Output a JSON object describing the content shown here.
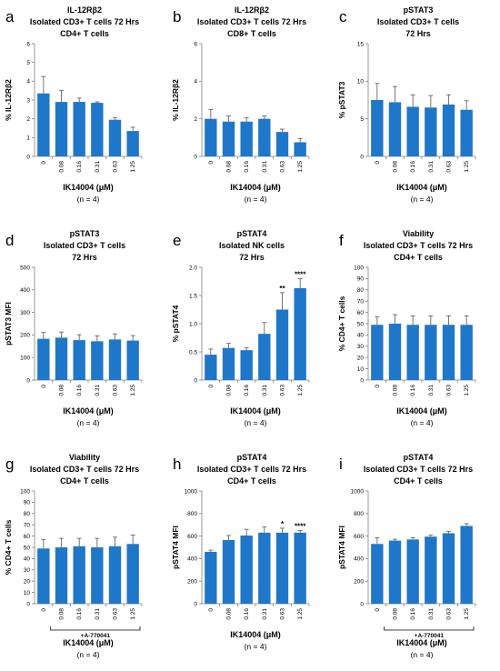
{
  "colors": {
    "bar": "#1f77c9",
    "axis": "#7f7f7f",
    "text": "#000000"
  },
  "chart_data": [
    {
      "type": "bar",
      "letter": "a",
      "title": [
        "IL-12Rβ2",
        "Isolated CD3+ T cells 72 Hrs",
        "CD4+ T cells"
      ],
      "ylabel": "% IL-12Rβ2",
      "xlabel": "IK14004 (μM)",
      "n_label": "(n = 4)",
      "categories": [
        "0",
        "0.08",
        "0.16",
        "0.31",
        "0.63",
        "1.25"
      ],
      "ylim": [
        0,
        6
      ],
      "yticks": [
        0,
        1,
        2,
        3,
        4,
        5,
        6
      ],
      "values": [
        3.35,
        2.9,
        2.9,
        2.85,
        1.95,
        1.35
      ],
      "errors": [
        0.9,
        0.6,
        0.2,
        0.05,
        0.1,
        0.2
      ],
      "significance": [
        "",
        "",
        "",
        "",
        "",
        ""
      ]
    },
    {
      "type": "bar",
      "letter": "b",
      "title": [
        "IL-12Rβ2",
        "Isolated CD3+ T cells 72 Hrs",
        "CD8+ T cells"
      ],
      "ylabel": "% IL-12Rβ2",
      "xlabel": "IK14004 (μM)",
      "n_label": "(n = 4)",
      "categories": [
        "0",
        "0.08",
        "0.16",
        "0.31",
        "0.63",
        "1.25"
      ],
      "ylim": [
        0,
        6
      ],
      "yticks": [
        0,
        2,
        4,
        6
      ],
      "values": [
        2.0,
        1.85,
        1.85,
        2.0,
        1.3,
        0.75
      ],
      "errors": [
        0.5,
        0.3,
        0.2,
        0.15,
        0.15,
        0.2
      ],
      "significance": [
        "",
        "",
        "",
        "",
        "",
        ""
      ]
    },
    {
      "type": "bar",
      "letter": "c",
      "title": [
        "pSTAT3",
        "Isolated CD3+ T cells",
        "72 Hrs"
      ],
      "ylabel": "% pSTAT3",
      "xlabel": "IK14004 (μM)",
      "n_label": "(n = 4)",
      "categories": [
        "0",
        "0.08",
        "0.16",
        "0.31",
        "0.63",
        "1.25"
      ],
      "ylim": [
        0,
        15
      ],
      "yticks": [
        0,
        5,
        10,
        15
      ],
      "values": [
        7.5,
        7.2,
        6.6,
        6.5,
        6.9,
        6.2
      ],
      "errors": [
        2.2,
        2.1,
        1.6,
        1.6,
        1.3,
        1.2
      ],
      "significance": [
        "",
        "",
        "",
        "",
        "",
        ""
      ]
    },
    {
      "type": "bar",
      "letter": "d",
      "title": [
        "pSTAT3",
        "Isolated CD3+ T cells",
        "72 Hrs"
      ],
      "ylabel": "pSTAT3 MFI",
      "xlabel": "IK14004 (μM)",
      "n_label": "(n = 4)",
      "categories": [
        "0",
        "0.08",
        "0.16",
        "0.31",
        "0.63",
        "1.25"
      ],
      "ylim": [
        0,
        500
      ],
      "yticks": [
        0,
        100,
        200,
        300,
        400,
        500
      ],
      "values": [
        183,
        188,
        177,
        172,
        180,
        175
      ],
      "errors": [
        28,
        25,
        24,
        24,
        25,
        22
      ],
      "significance": [
        "",
        "",
        "",
        "",
        "",
        ""
      ]
    },
    {
      "type": "bar",
      "letter": "e",
      "title": [
        "pSTAT4",
        "Isolated NK cells",
        "72 Hrs"
      ],
      "ylabel": "% pSTAT4",
      "xlabel": "IK14004 (μM)",
      "n_label": "(n = 4)",
      "categories": [
        "0",
        "0.08",
        "0.16",
        "0.31",
        "0.63",
        "1.25"
      ],
      "ylim": [
        0,
        2.0
      ],
      "yticks": [
        "0",
        "0.5",
        "1.0",
        "1.5",
        "2.0"
      ],
      "values": [
        0.45,
        0.57,
        0.53,
        0.82,
        1.25,
        1.63
      ],
      "errors": [
        0.1,
        0.08,
        0.04,
        0.2,
        0.3,
        0.17
      ],
      "significance": [
        "",
        "",
        "",
        "",
        "**",
        "****"
      ]
    },
    {
      "type": "bar",
      "letter": "f",
      "title": [
        "Viability",
        "Isolated CD3+ T cells 72 Hrs",
        "CD4+ T cells"
      ],
      "ylabel": "% CD4+ T cells",
      "xlabel": "IK14004 (μM)",
      "n_label": "(n = 4)",
      "categories": [
        "0",
        "0.08",
        "0.16",
        "0.31",
        "0.63",
        "1.25"
      ],
      "ylim": [
        0,
        100
      ],
      "yticks": [
        0,
        10,
        20,
        30,
        40,
        50,
        60,
        70,
        80,
        90,
        100
      ],
      "values": [
        49,
        50,
        49,
        49,
        49,
        49
      ],
      "errors": [
        7,
        8,
        8,
        8,
        8,
        8
      ],
      "significance": [
        "",
        "",
        "",
        "",
        "",
        ""
      ]
    },
    {
      "type": "bar",
      "letter": "g",
      "title": [
        "Viability",
        "Isolated CD3+ T cells 72 Hrs",
        "CD4+ T cells"
      ],
      "ylabel": "% CD4+ T cells",
      "xlabel": "IK14004 (μM)",
      "n_label": "(n = 4)",
      "bracket_label": "+A-770041",
      "categories": [
        "0",
        "0.08",
        "0.16",
        "0.31",
        "0.63",
        "1.25"
      ],
      "ylim": [
        0,
        100
      ],
      "yticks": [
        0,
        10,
        20,
        30,
        40,
        50,
        60,
        70,
        80,
        90,
        100
      ],
      "values": [
        49,
        50,
        51,
        50,
        51,
        53
      ],
      "errors": [
        8,
        8,
        7,
        8,
        8,
        8
      ],
      "significance": [
        "",
        "",
        "",
        "",
        "",
        ""
      ]
    },
    {
      "type": "bar",
      "letter": "h",
      "title": [
        "pSTAT4",
        "Isolated CD3+ T cells 72 Hrs",
        "CD4+ T cells"
      ],
      "ylabel": "pSTAT4 MFI",
      "xlabel": "IK14004 (μM)",
      "n_label": "(n = 4)",
      "categories": [
        "0",
        "0.08",
        "0.16",
        "0.31",
        "0.63",
        "1.25"
      ],
      "ylim": [
        0,
        1000
      ],
      "yticks": [
        0,
        200,
        400,
        600,
        800,
        1000
      ],
      "values": [
        460,
        565,
        605,
        630,
        630,
        630
      ],
      "errors": [
        15,
        40,
        55,
        50,
        40,
        20
      ],
      "significance": [
        "",
        "",
        "",
        "",
        "*",
        "****"
      ]
    },
    {
      "type": "bar",
      "letter": "i",
      "title": [
        "pSTAT4",
        "Isolated CD3+ T cells 72 Hrs",
        "CD4+ T cells"
      ],
      "ylabel": "pSTAT4 MFI",
      "xlabel": "IK14004 (μM)",
      "n_label": "(n = 4)",
      "bracket_label": "+A-770041",
      "categories": [
        "0",
        "0.08",
        "0.16",
        "0.31",
        "0.63",
        "1.25"
      ],
      "ylim": [
        0,
        1000
      ],
      "yticks": [
        0,
        200,
        400,
        600,
        800,
        1000
      ],
      "values": [
        530,
        560,
        570,
        595,
        625,
        690
      ],
      "errors": [
        55,
        12,
        15,
        15,
        18,
        20
      ],
      "significance": [
        "",
        "",
        "",
        "",
        "",
        ""
      ]
    }
  ]
}
